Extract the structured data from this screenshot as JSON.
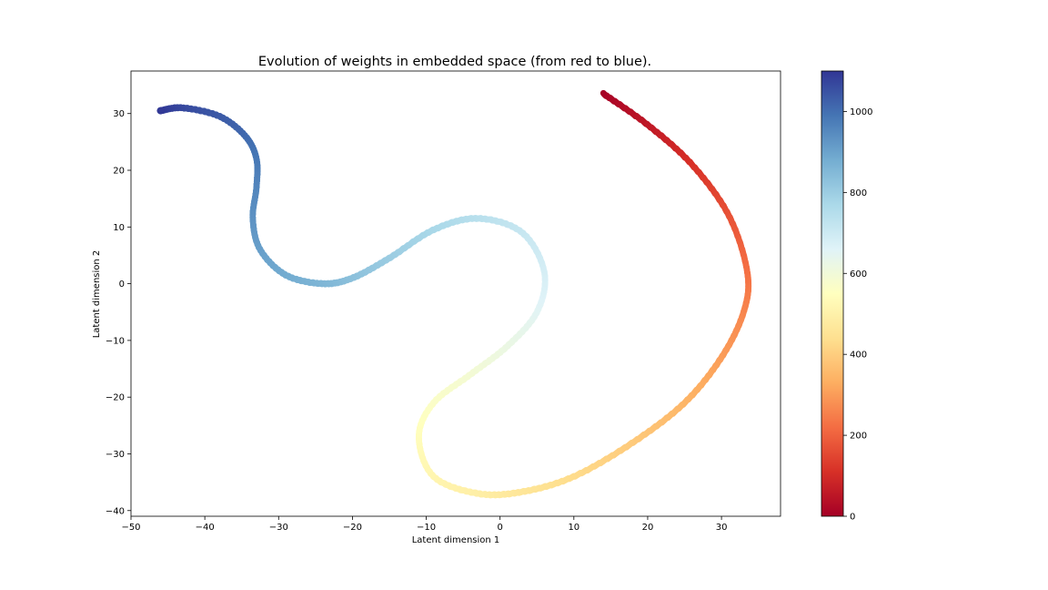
{
  "chart_data": {
    "type": "scatter",
    "title": "Evolution of weights in embedded space (from red to blue).",
    "xlabel": "Latent dimension 1",
    "ylabel": "Latent dimension 2",
    "xlim": [
      -50,
      38
    ],
    "ylim": [
      -41,
      37.5
    ],
    "xticks": [
      -50,
      -40,
      -30,
      -20,
      -10,
      0,
      10,
      20,
      30
    ],
    "yticks": [
      -40,
      -30,
      -20,
      -10,
      0,
      10,
      20,
      30
    ],
    "grid": false,
    "colorbar": {
      "colormap": "RdYlBu",
      "range": [
        0,
        1100
      ],
      "ticks": [
        0,
        200,
        400,
        600,
        800,
        1000
      ],
      "stops": [
        "#a50026",
        "#d73027",
        "#f46d43",
        "#fdae61",
        "#fee090",
        "#ffffbf",
        "#e0f3f8",
        "#abd9e9",
        "#74add1",
        "#4575b4",
        "#313695"
      ]
    },
    "trajectory": {
      "points": [
        {
          "x": 14.0,
          "y": 33.5,
          "t": 0
        },
        {
          "x": 20.0,
          "y": 28.0,
          "t": 55
        },
        {
          "x": 26.0,
          "y": 21.0,
          "t": 110
        },
        {
          "x": 31.0,
          "y": 12.0,
          "t": 170
        },
        {
          "x": 33.5,
          "y": 2.0,
          "t": 225
        },
        {
          "x": 33.0,
          "y": -5.0,
          "t": 260
        },
        {
          "x": 30.0,
          "y": -13.0,
          "t": 300
        },
        {
          "x": 25.0,
          "y": -21.0,
          "t": 345
        },
        {
          "x": 18.0,
          "y": -28.0,
          "t": 390
        },
        {
          "x": 10.0,
          "y": -34.0,
          "t": 430
        },
        {
          "x": 3.0,
          "y": -36.7,
          "t": 460
        },
        {
          "x": -3.0,
          "y": -37.0,
          "t": 490
        },
        {
          "x": -9.0,
          "y": -34.0,
          "t": 515
        },
        {
          "x": -11.0,
          "y": -27.0,
          "t": 540
        },
        {
          "x": -9.0,
          "y": -21.0,
          "t": 565
        },
        {
          "x": -4.0,
          "y": -16.0,
          "t": 590
        },
        {
          "x": 1.0,
          "y": -11.0,
          "t": 620
        },
        {
          "x": 5.0,
          "y": -5.0,
          "t": 650
        },
        {
          "x": 6.0,
          "y": 2.0,
          "t": 680
        },
        {
          "x": 3.0,
          "y": 9.0,
          "t": 710
        },
        {
          "x": -3.0,
          "y": 11.5,
          "t": 740
        },
        {
          "x": -9.0,
          "y": 9.5,
          "t": 770
        },
        {
          "x": -15.0,
          "y": 4.5,
          "t": 800
        },
        {
          "x": -20.0,
          "y": 1.0,
          "t": 830
        },
        {
          "x": -24.0,
          "y": 0.0,
          "t": 855
        },
        {
          "x": -29.0,
          "y": 1.5,
          "t": 880
        },
        {
          "x": -32.5,
          "y": 6.0,
          "t": 905
        },
        {
          "x": -33.5,
          "y": 11.5,
          "t": 930
        },
        {
          "x": -33.0,
          "y": 17.0,
          "t": 955
        },
        {
          "x": -33.0,
          "y": 22.0,
          "t": 980
        },
        {
          "x": -34.5,
          "y": 26.0,
          "t": 1005
        },
        {
          "x": -38.0,
          "y": 29.5,
          "t": 1035
        },
        {
          "x": -43.0,
          "y": 31.0,
          "t": 1065
        },
        {
          "x": -46.0,
          "y": 30.5,
          "t": 1095
        }
      ]
    }
  }
}
